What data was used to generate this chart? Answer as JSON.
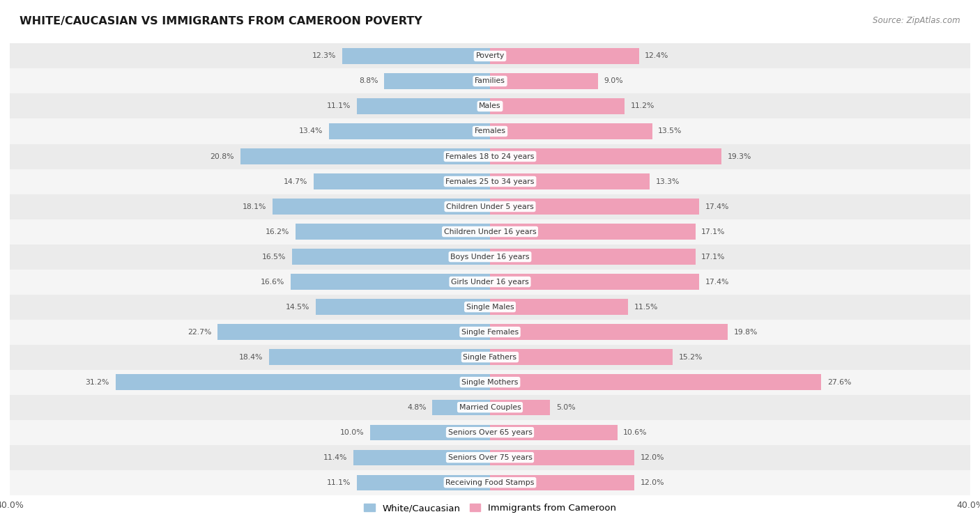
{
  "title": "WHITE/CAUCASIAN VS IMMIGRANTS FROM CAMEROON POVERTY",
  "source": "Source: ZipAtlas.com",
  "categories": [
    "Poverty",
    "Families",
    "Males",
    "Females",
    "Females 18 to 24 years",
    "Females 25 to 34 years",
    "Children Under 5 years",
    "Children Under 16 years",
    "Boys Under 16 years",
    "Girls Under 16 years",
    "Single Males",
    "Single Females",
    "Single Fathers",
    "Single Mothers",
    "Married Couples",
    "Seniors Over 65 years",
    "Seniors Over 75 years",
    "Receiving Food Stamps"
  ],
  "white_values": [
    12.3,
    8.8,
    11.1,
    13.4,
    20.8,
    14.7,
    18.1,
    16.2,
    16.5,
    16.6,
    14.5,
    22.7,
    18.4,
    31.2,
    4.8,
    10.0,
    11.4,
    11.1
  ],
  "cameroon_values": [
    12.4,
    9.0,
    11.2,
    13.5,
    19.3,
    13.3,
    17.4,
    17.1,
    17.1,
    17.4,
    11.5,
    19.8,
    15.2,
    27.6,
    5.0,
    10.6,
    12.0,
    12.0
  ],
  "white_color": "#9dc3de",
  "cameroon_color": "#f0a0b8",
  "white_label": "White/Caucasian",
  "cameroon_label": "Immigrants from Cameroon",
  "xlim": 40.0,
  "bg_light": "#f0f0f0",
  "bg_dark": "#e4e4e4",
  "bar_bg_light": "#f7f7f7",
  "bar_bg_dark": "#ececec"
}
